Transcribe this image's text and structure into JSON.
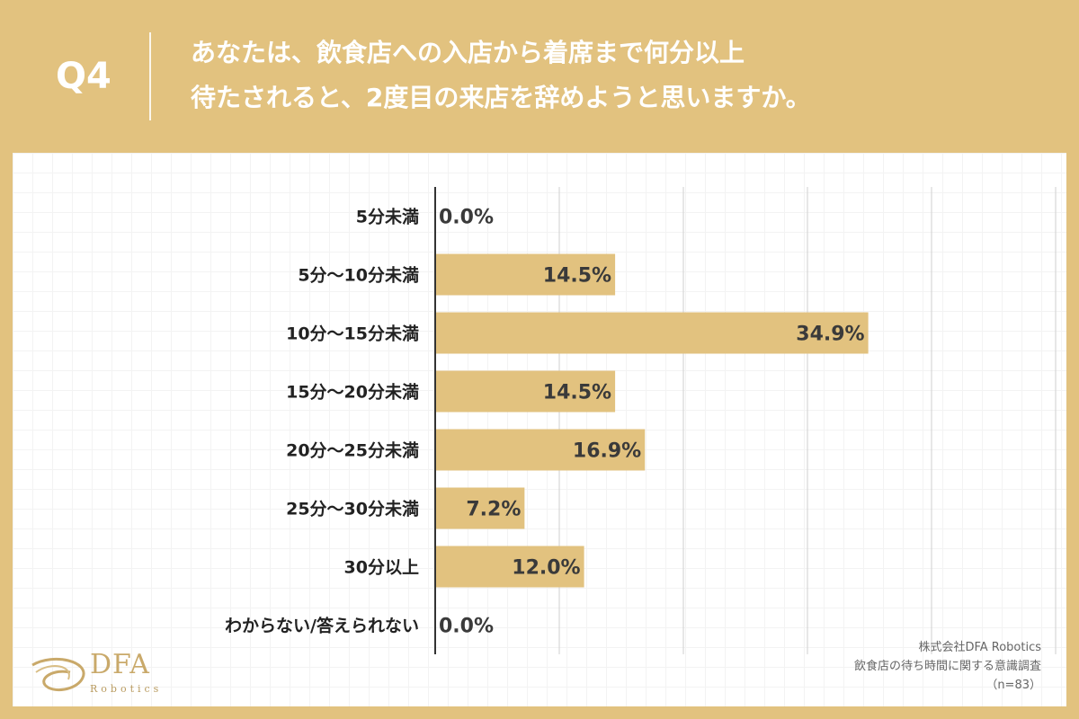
{
  "question": {
    "number": "Q4",
    "line1": "あなたは、飲食店への入店から着席まで何分以上",
    "line2": "待たされると、2度目の来店を辞めようと思いますか。"
  },
  "colors": {
    "background": "#E2C27F",
    "bar": "#E2C27F",
    "header_text": "#FFFFFF"
  },
  "chart_data": {
    "type": "bar",
    "orientation": "horizontal",
    "categories": [
      "5分未満",
      "5分〜10分未満",
      "10分〜15分未満",
      "15分〜20分未満",
      "20分〜25分未満",
      "25分〜30分未満",
      "30分以上",
      "わからない/答えられない"
    ],
    "values": [
      0.0,
      14.5,
      34.9,
      14.5,
      16.9,
      7.2,
      12.0,
      0.0
    ],
    "value_labels": [
      "0.0%",
      "14.5%",
      "34.9%",
      "14.5%",
      "16.9%",
      "7.2%",
      "12.0%",
      "0.0%"
    ],
    "unit": "%",
    "xlim": [
      0,
      50
    ],
    "grid_step": 10,
    "grid": true
  },
  "brand": {
    "name": "DFA",
    "sub": "Robotics"
  },
  "source": {
    "company": "株式会社DFA Robotics",
    "survey": "飲食店の待ち時間に関する意識調査",
    "n": "（n=83）"
  }
}
